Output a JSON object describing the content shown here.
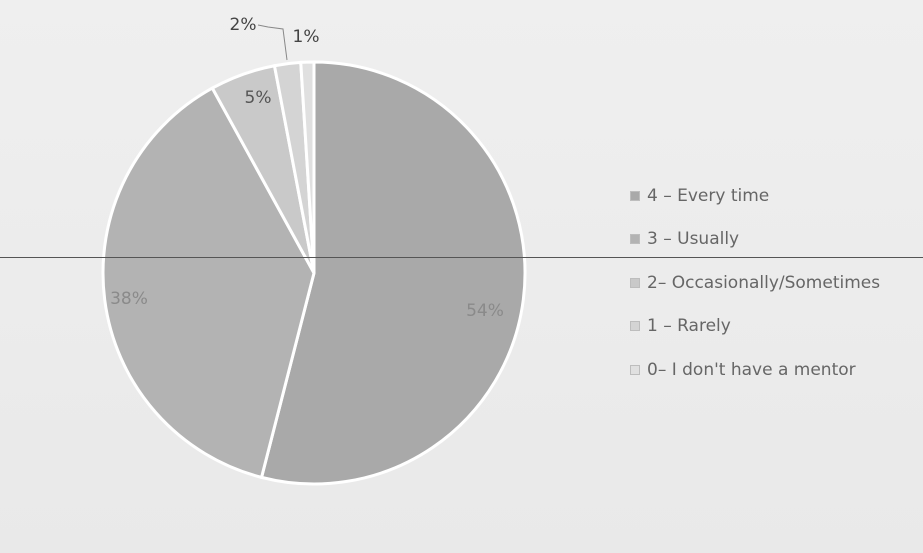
{
  "chart_data": {
    "type": "pie",
    "start_angle_deg": 0,
    "direction": "clockwise",
    "slices": [
      {
        "label": "4 – Every time",
        "value": 54,
        "value_label": "54%",
        "color": "#a9a9a9",
        "label_color": "#8a8a8a"
      },
      {
        "label": "3 – Usually",
        "value": 38,
        "value_label": "38%",
        "color": "#b3b3b3",
        "label_color": "#8a8a8a"
      },
      {
        "label": "2– Occasionally/Sometimes",
        "value": 5,
        "value_label": "5%",
        "color": "#c9c9c9",
        "label_color": "#555555"
      },
      {
        "label": "1 – Rarely",
        "value": 2,
        "value_label": "2%",
        "color": "#d4d4d4",
        "label_color": "#444444"
      },
      {
        "label": "0– I don't have a mentor",
        "value": 1,
        "value_label": "1%",
        "color": "#e0e0e0",
        "label_color": "#444444"
      }
    ],
    "legend_position": "right"
  }
}
